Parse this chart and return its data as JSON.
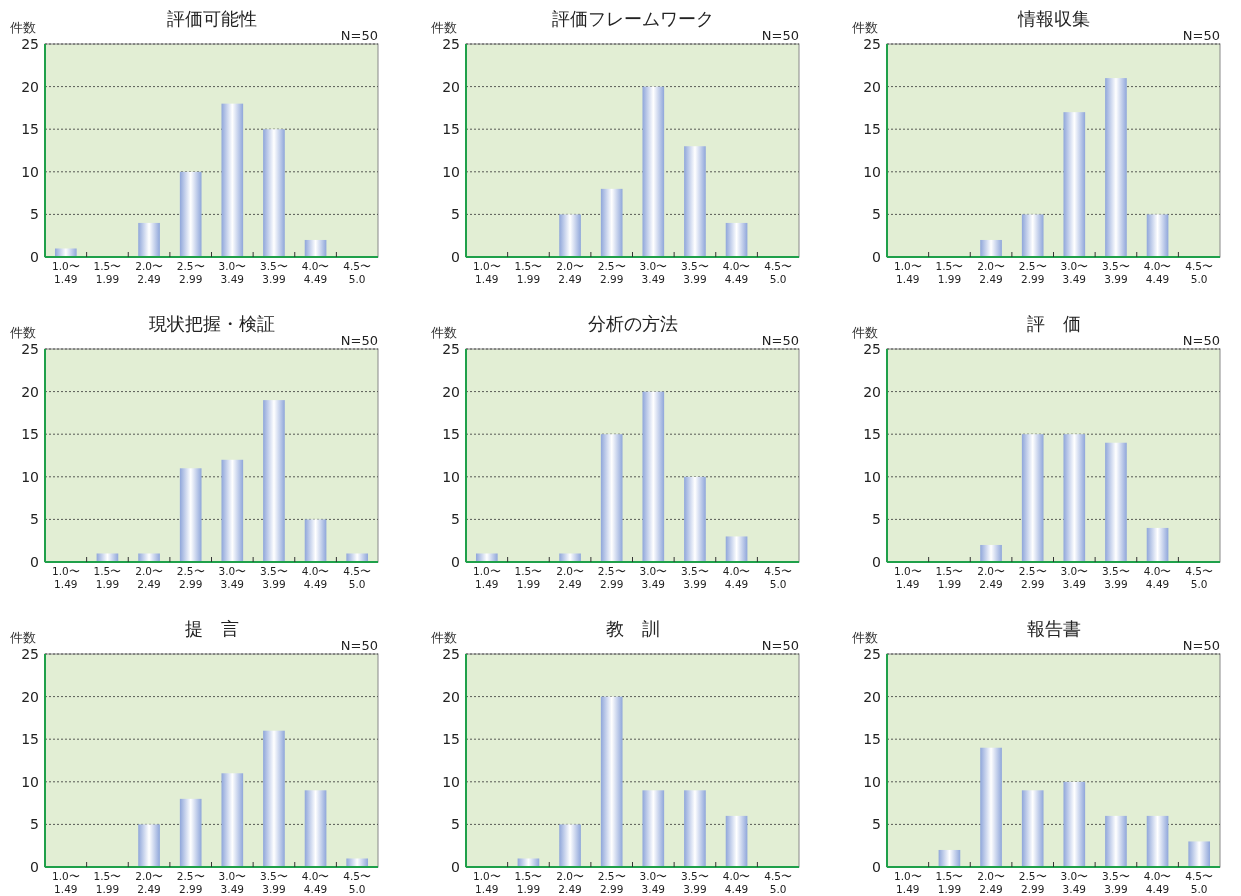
{
  "chart_data": [
    {
      "type": "bar",
      "title": "評価可能性",
      "ylabel": "件数",
      "annotations": [
        "N=50"
      ],
      "categories": [
        "1.0〜\n1.49",
        "1.5〜\n1.99",
        "2.0〜\n2.49",
        "2.5〜\n2.99",
        "3.0〜\n3.49",
        "3.5〜\n3.99",
        "4.0〜\n4.49",
        "4.5〜\n5.0"
      ],
      "values": [
        1,
        0,
        4,
        10,
        18,
        15,
        2,
        0
      ],
      "color": "#8fa6da",
      "ylim": [
        0,
        25
      ],
      "yticks": [
        0,
        5,
        10,
        15,
        20,
        25
      ],
      "grid": "y"
    },
    {
      "type": "bar",
      "title": "評価フレームワーク",
      "ylabel": "件数",
      "annotations": [
        "N=50"
      ],
      "categories": [
        "1.0〜\n1.49",
        "1.5〜\n1.99",
        "2.0〜\n2.49",
        "2.5〜\n2.99",
        "3.0〜\n3.49",
        "3.5〜\n3.99",
        "4.0〜\n4.49",
        "4.5〜\n5.0"
      ],
      "values": [
        0,
        0,
        5,
        8,
        20,
        13,
        4,
        0
      ],
      "color": "#8fa6da",
      "ylim": [
        0,
        25
      ],
      "yticks": [
        0,
        5,
        10,
        15,
        20,
        25
      ],
      "grid": "y"
    },
    {
      "type": "bar",
      "title": "情報収集",
      "ylabel": "件数",
      "annotations": [
        "N=50"
      ],
      "categories": [
        "1.0〜\n1.49",
        "1.5〜\n1.99",
        "2.0〜\n2.49",
        "2.5〜\n2.99",
        "3.0〜\n3.49",
        "3.5〜\n3.99",
        "4.0〜\n4.49",
        "4.5〜\n5.0"
      ],
      "values": [
        0,
        0,
        2,
        5,
        17,
        21,
        5,
        0
      ],
      "color": "#8fa6da",
      "ylim": [
        0,
        25
      ],
      "yticks": [
        0,
        5,
        10,
        15,
        20,
        25
      ],
      "grid": "y"
    },
    {
      "type": "bar",
      "title": "現状把握・検証",
      "ylabel": "件数",
      "annotations": [
        "N=50"
      ],
      "categories": [
        "1.0〜\n1.49",
        "1.5〜\n1.99",
        "2.0〜\n2.49",
        "2.5〜\n2.99",
        "3.0〜\n3.49",
        "3.5〜\n3.99",
        "4.0〜\n4.49",
        "4.5〜\n5.0"
      ],
      "values": [
        0,
        1,
        1,
        11,
        12,
        19,
        5,
        1
      ],
      "color": "#8fa6da",
      "ylim": [
        0,
        25
      ],
      "yticks": [
        0,
        5,
        10,
        15,
        20,
        25
      ],
      "grid": "y"
    },
    {
      "type": "bar",
      "title": "分析の方法",
      "ylabel": "件数",
      "annotations": [
        "N=50"
      ],
      "categories": [
        "1.0〜\n1.49",
        "1.5〜\n1.99",
        "2.0〜\n2.49",
        "2.5〜\n2.99",
        "3.0〜\n3.49",
        "3.5〜\n3.99",
        "4.0〜\n4.49",
        "4.5〜\n5.0"
      ],
      "values": [
        1,
        0,
        1,
        15,
        20,
        10,
        3,
        0
      ],
      "color": "#8fa6da",
      "ylim": [
        0,
        25
      ],
      "yticks": [
        0,
        5,
        10,
        15,
        20,
        25
      ],
      "grid": "y"
    },
    {
      "type": "bar",
      "title": "評　価",
      "ylabel": "件数",
      "annotations": [
        "N=50"
      ],
      "categories": [
        "1.0〜\n1.49",
        "1.5〜\n1.99",
        "2.0〜\n2.49",
        "2.5〜\n2.99",
        "3.0〜\n3.49",
        "3.5〜\n3.99",
        "4.0〜\n4.49",
        "4.5〜\n5.0"
      ],
      "values": [
        0,
        0,
        2,
        15,
        15,
        14,
        4,
        0
      ],
      "color": "#8fa6da",
      "ylim": [
        0,
        25
      ],
      "yticks": [
        0,
        5,
        10,
        15,
        20,
        25
      ],
      "grid": "y"
    },
    {
      "type": "bar",
      "title": "提　言",
      "ylabel": "件数",
      "annotations": [
        "N=50"
      ],
      "categories": [
        "1.0〜\n1.49",
        "1.5〜\n1.99",
        "2.0〜\n2.49",
        "2.5〜\n2.99",
        "3.0〜\n3.49",
        "3.5〜\n3.99",
        "4.0〜\n4.49",
        "4.5〜\n5.0"
      ],
      "values": [
        0,
        0,
        5,
        8,
        11,
        16,
        9,
        1
      ],
      "color": "#8fa6da",
      "ylim": [
        0,
        25
      ],
      "yticks": [
        0,
        5,
        10,
        15,
        20,
        25
      ],
      "grid": "y"
    },
    {
      "type": "bar",
      "title": "教　訓",
      "ylabel": "件数",
      "annotations": [
        "N=50"
      ],
      "categories": [
        "1.0〜\n1.49",
        "1.5〜\n1.99",
        "2.0〜\n2.49",
        "2.5〜\n2.99",
        "3.0〜\n3.49",
        "3.5〜\n3.99",
        "4.0〜\n4.49",
        "4.5〜\n5.0"
      ],
      "values": [
        0,
        1,
        5,
        20,
        9,
        9,
        6,
        0
      ],
      "color": "#8fa6da",
      "ylim": [
        0,
        25
      ],
      "yticks": [
        0,
        5,
        10,
        15,
        20,
        25
      ],
      "grid": "y"
    },
    {
      "type": "bar",
      "title": "報告書",
      "ylabel": "件数",
      "annotations": [
        "N=50"
      ],
      "categories": [
        "1.0〜\n1.49",
        "1.5〜\n1.99",
        "2.0〜\n2.49",
        "2.5〜\n2.99",
        "3.0〜\n3.49",
        "3.5〜\n3.99",
        "4.0〜\n4.49",
        "4.5〜\n5.0"
      ],
      "values": [
        0,
        2,
        14,
        9,
        10,
        6,
        6,
        3
      ],
      "color": "#8fa6da",
      "ylim": [
        0,
        25
      ],
      "yticks": [
        0,
        5,
        10,
        15,
        20,
        25
      ],
      "grid": "y"
    }
  ]
}
